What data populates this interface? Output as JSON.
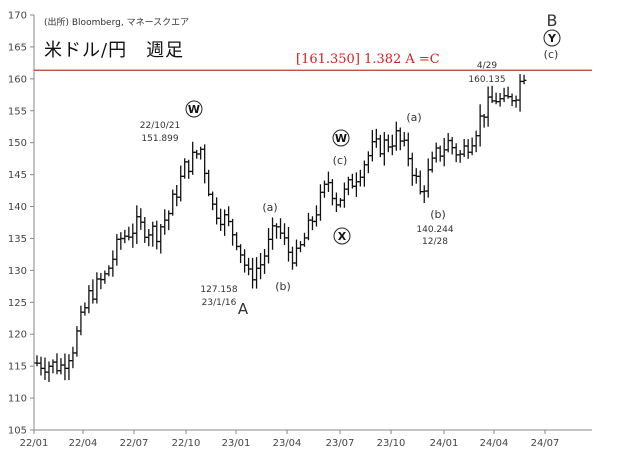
{
  "header": {
    "source": "(出所) Bloomberg, マネースクエア",
    "title": "米ドル/円　週足",
    "target_label": "[161.350] 1.382 A =C"
  },
  "chart_data": {
    "type": "ohlc",
    "title": "米ドル/円　週足",
    "xlabel": "",
    "ylabel": "",
    "ylim": [
      105,
      170
    ],
    "y_ticks": [
      105,
      110,
      115,
      120,
      125,
      130,
      135,
      140,
      145,
      150,
      155,
      160,
      165,
      170
    ],
    "x_ticks": [
      "22/01",
      "22/04",
      "22/07",
      "22/10",
      "23/01",
      "23/04",
      "23/07",
      "23/10",
      "24/01",
      "24/04",
      "24/07"
    ],
    "grid": false,
    "target_line": 161.35,
    "anchors": [
      {
        "x": 0,
        "y": 115.5
      },
      {
        "x": 6,
        "y": 115
      },
      {
        "x": 9,
        "y": 118
      },
      {
        "x": 13,
        "y": 126
      },
      {
        "x": 17,
        "y": 129
      },
      {
        "x": 21,
        "y": 135
      },
      {
        "x": 25,
        "y": 137
      },
      {
        "x": 30,
        "y": 136
      },
      {
        "x": 33,
        "y": 139
      },
      {
        "x": 37,
        "y": 146
      },
      {
        "x": 41,
        "y": 149
      },
      {
        "x": 42,
        "y": 146
      },
      {
        "x": 44,
        "y": 140
      },
      {
        "x": 47,
        "y": 138
      },
      {
        "x": 50,
        "y": 135
      },
      {
        "x": 53,
        "y": 129
      },
      {
        "x": 56,
        "y": 131
      },
      {
        "x": 60,
        "y": 137
      },
      {
        "x": 63,
        "y": 133
      },
      {
        "x": 65,
        "y": 132
      },
      {
        "x": 69,
        "y": 138
      },
      {
        "x": 73,
        "y": 144
      },
      {
        "x": 75,
        "y": 141
      },
      {
        "x": 77,
        "y": 142
      },
      {
        "x": 80,
        "y": 145
      },
      {
        "x": 84,
        "y": 149
      },
      {
        "x": 88,
        "y": 150
      },
      {
        "x": 90,
        "y": 151
      },
      {
        "x": 93,
        "y": 148
      },
      {
        "x": 96,
        "y": 142
      },
      {
        "x": 100,
        "y": 148
      },
      {
        "x": 103,
        "y": 150
      },
      {
        "x": 106,
        "y": 148
      },
      {
        "x": 109,
        "y": 151
      },
      {
        "x": 112,
        "y": 155
      },
      {
        "x": 115,
        "y": 157
      },
      {
        "x": 117,
        "y": 156
      },
      {
        "x": 120,
        "y": 158
      },
      {
        "x": 122,
        "y": 161
      }
    ],
    "annotations": [
      {
        "label": "22/10/21",
        "value": "151.899"
      },
      {
        "label": "23/1/16",
        "value": "127.158"
      },
      {
        "label": "12/28",
        "value": "140.244"
      },
      {
        "label": "4/29",
        "value": "160.135"
      }
    ],
    "wave_labels": [
      "W",
      "A",
      "(a)",
      "(b)",
      "W",
      "(c)",
      "X",
      "(a)",
      "(b)",
      "B",
      "Y",
      "(c)"
    ]
  }
}
